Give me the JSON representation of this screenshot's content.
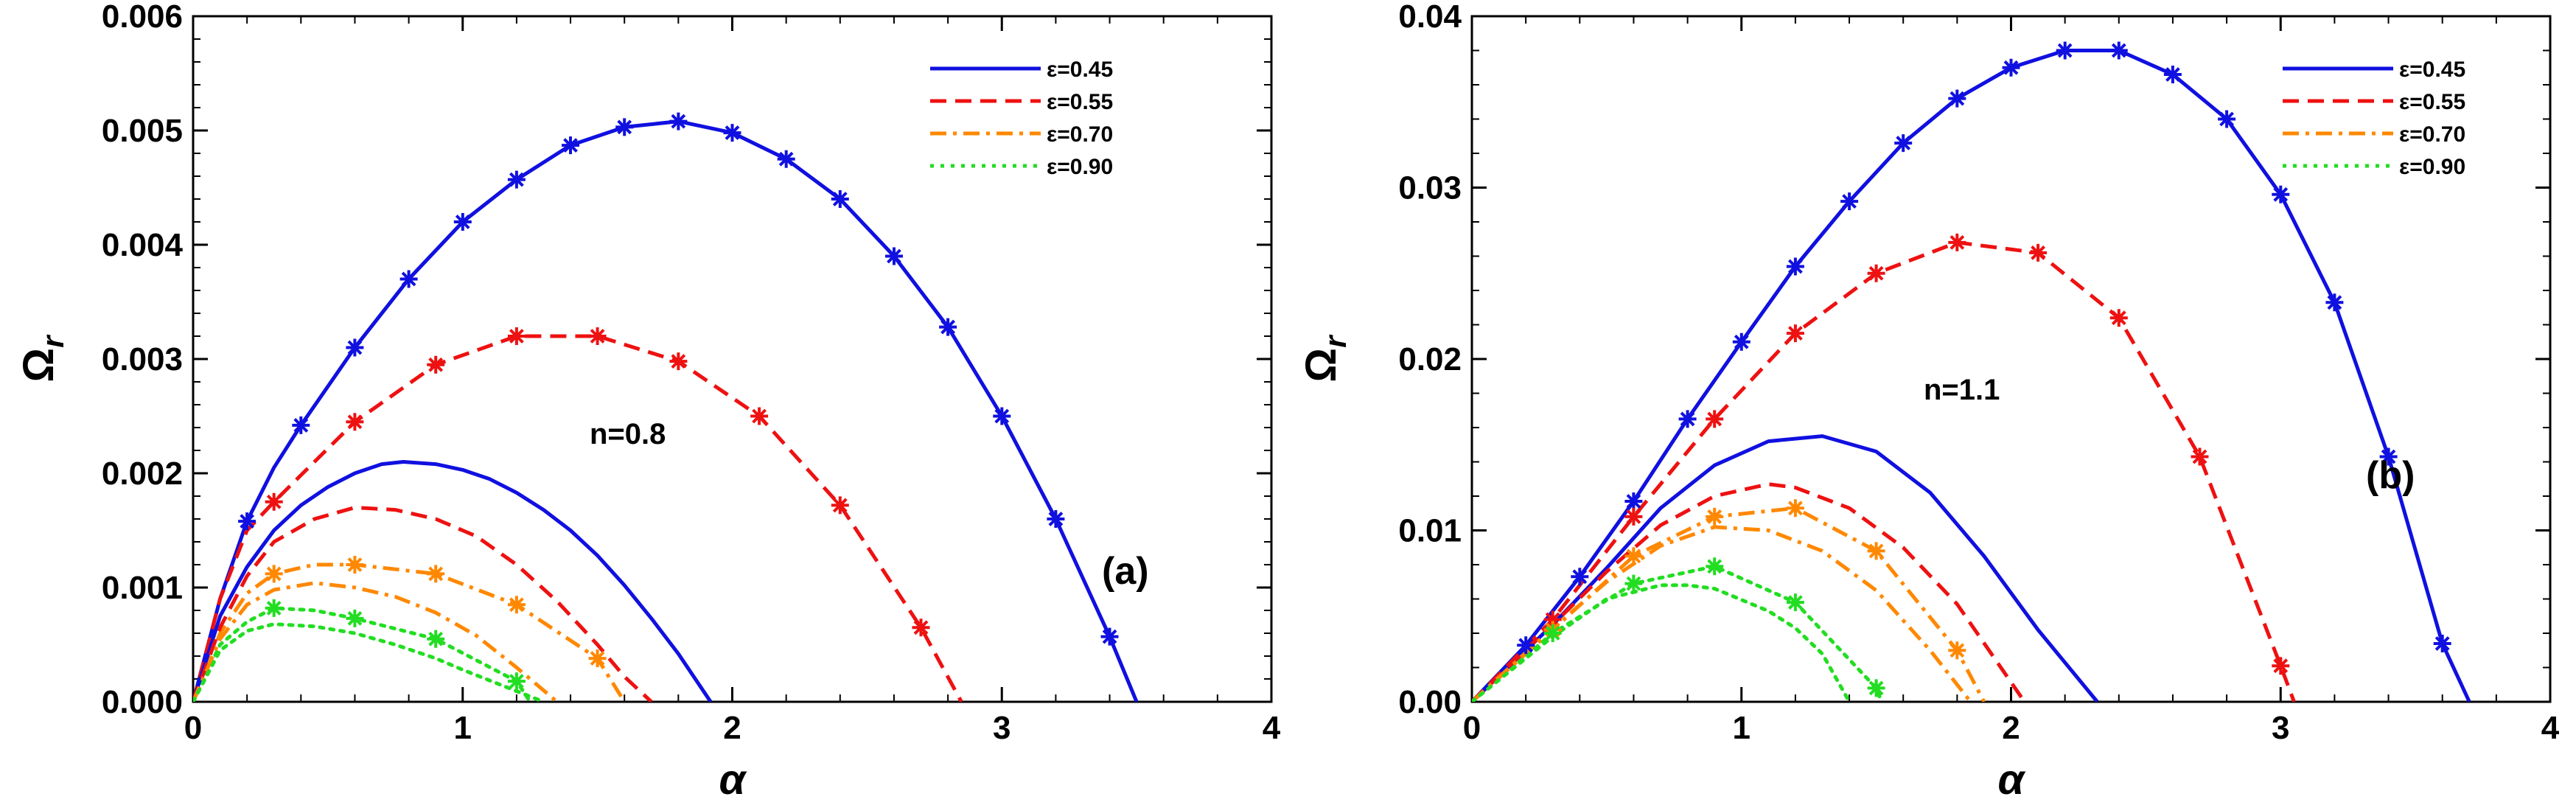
{
  "chart_data": [
    {
      "type": "line",
      "panel_label": "(a)",
      "annotation": "n=0.8",
      "xlabel": "α",
      "ylabel_main": "Ω",
      "ylabel_sub": "r",
      "xlim": [
        0,
        4
      ],
      "ylim": [
        0,
        0.006
      ],
      "xticks": [
        0,
        1,
        2,
        3,
        4
      ],
      "xtick_labels": [
        "0",
        "1",
        "2",
        "3",
        "4"
      ],
      "yticks": [
        0,
        0.001,
        0.002,
        0.003,
        0.004,
        0.005,
        0.006
      ],
      "ytick_labels": [
        "0.000",
        "0.001",
        "0.002",
        "0.003",
        "0.004",
        "0.005",
        "0.006"
      ],
      "legend_position": "top-right",
      "series": [
        {
          "name": "ε=0.45",
          "color": "#1010e0",
          "dash": "solid",
          "legend": true,
          "x": [
            0,
            0.1,
            0.2,
            0.3,
            0.4,
            0.6,
            0.8,
            1.0,
            1.2,
            1.4,
            1.6,
            1.8,
            2.0,
            2.2,
            2.4,
            2.6,
            2.8,
            3.0,
            3.2,
            3.4,
            3.5
          ],
          "y": [
            0,
            0.0009,
            0.00158,
            0.00205,
            0.00242,
            0.0031,
            0.0037,
            0.0042,
            0.00457,
            0.00487,
            0.00503,
            0.00508,
            0.00498,
            0.00475,
            0.0044,
            0.0039,
            0.00328,
            0.0025,
            0.0016,
            0.00057,
            0
          ]
        },
        {
          "name": "ε=0.55",
          "color": "#ee1111",
          "dash": "dashed",
          "legend": true,
          "x": [
            0,
            0.1,
            0.2,
            0.3,
            0.45,
            0.6,
            0.9,
            1.2,
            1.5,
            1.8,
            2.1,
            2.4,
            2.7,
            2.85
          ],
          "y": [
            0,
            0.0009,
            0.0015,
            0.00175,
            0.0021,
            0.00245,
            0.00295,
            0.0032,
            0.0032,
            0.00298,
            0.0025,
            0.00172,
            0.00065,
            0
          ]
        },
        {
          "name": "ε=0.70",
          "color": "#ff8800",
          "dash": "dashdot",
          "legend": true,
          "x": [
            0,
            0.1,
            0.2,
            0.3,
            0.45,
            0.6,
            0.9,
            1.2,
            1.5,
            1.6
          ],
          "y": [
            0,
            0.0006,
            0.00095,
            0.00112,
            0.0012,
            0.0012,
            0.00112,
            0.00085,
            0.00038,
            0
          ]
        },
        {
          "name": "ε=0.90",
          "color": "#22dd22",
          "dash": "dotted",
          "legend": true,
          "x": [
            0,
            0.1,
            0.2,
            0.3,
            0.45,
            0.6,
            0.9,
            1.2,
            1.25
          ],
          "y": [
            0,
            0.0005,
            0.0007,
            0.00082,
            0.0008,
            0.00073,
            0.00055,
            0.00018,
            0
          ]
        },
        {
          "name": "ε=0.45 (lower)",
          "color": "#1010e0",
          "dash": "solid",
          "legend": false,
          "x": [
            0,
            0.1,
            0.2,
            0.3,
            0.4,
            0.5,
            0.6,
            0.7,
            0.78,
            0.9,
            1.0,
            1.1,
            1.2,
            1.3,
            1.4,
            1.5,
            1.6,
            1.7,
            1.8,
            1.92
          ],
          "y": [
            0,
            0.00075,
            0.00118,
            0.0015,
            0.00172,
            0.00188,
            0.002,
            0.00208,
            0.0021,
            0.00208,
            0.00203,
            0.00195,
            0.00183,
            0.00168,
            0.0015,
            0.00128,
            0.00102,
            0.00073,
            0.00042,
            0
          ]
        },
        {
          "name": "ε=0.55 (lower)",
          "color": "#ee1111",
          "dash": "dashed",
          "legend": false,
          "x": [
            0,
            0.1,
            0.2,
            0.3,
            0.45,
            0.6,
            0.75,
            0.9,
            1.05,
            1.2,
            1.35,
            1.5,
            1.6,
            1.7
          ],
          "y": [
            0,
            0.00065,
            0.0011,
            0.0014,
            0.0016,
            0.0017,
            0.00168,
            0.0016,
            0.00145,
            0.0012,
            0.00088,
            0.0005,
            0.00022,
            0
          ]
        },
        {
          "name": "ε=0.70 (lower)",
          "color": "#ff8800",
          "dash": "dashdot",
          "legend": false,
          "x": [
            0,
            0.1,
            0.2,
            0.3,
            0.45,
            0.6,
            0.75,
            0.9,
            1.05,
            1.2,
            1.35
          ],
          "y": [
            0,
            0.00055,
            0.00085,
            0.00098,
            0.00104,
            0.001,
            0.00092,
            0.00078,
            0.00058,
            0.0003,
            0
          ]
        },
        {
          "name": "ε=0.90 (lower)",
          "color": "#22dd22",
          "dash": "dotted",
          "legend": false,
          "x": [
            0,
            0.1,
            0.2,
            0.3,
            0.45,
            0.6,
            0.75,
            0.9,
            1.0,
            1.15,
            1.3
          ],
          "y": [
            0,
            0.00045,
            0.00062,
            0.00068,
            0.00066,
            0.0006,
            0.0005,
            0.00038,
            0.00028,
            0.00014,
            0
          ]
        }
      ],
      "markers": [
        {
          "color": "#1010e0",
          "x": [
            0.2,
            0.4,
            0.6,
            0.8,
            1.0,
            1.2,
            1.4,
            1.6,
            1.8,
            2.0,
            2.2,
            2.4,
            2.6,
            2.8,
            3.0,
            3.2,
            3.4
          ],
          "y": [
            0.00158,
            0.00242,
            0.0031,
            0.0037,
            0.0042,
            0.00457,
            0.00487,
            0.00503,
            0.00508,
            0.00498,
            0.00475,
            0.0044,
            0.0039,
            0.00328,
            0.0025,
            0.0016,
            0.00057
          ]
        },
        {
          "color": "#ee1111",
          "x": [
            0.3,
            0.6,
            0.9,
            1.2,
            1.5,
            1.8,
            2.1,
            2.4,
            2.7
          ],
          "y": [
            0.00175,
            0.00245,
            0.00295,
            0.0032,
            0.0032,
            0.00298,
            0.0025,
            0.00172,
            0.00065
          ]
        },
        {
          "color": "#ff8800",
          "x": [
            0.3,
            0.6,
            0.9,
            1.2,
            1.5
          ],
          "y": [
            0.00112,
            0.0012,
            0.00112,
            0.00085,
            0.00038
          ]
        },
        {
          "color": "#22dd22",
          "x": [
            0.3,
            0.6,
            0.9,
            1.2
          ],
          "y": [
            0.00082,
            0.00073,
            0.00055,
            0.00018
          ]
        }
      ]
    },
    {
      "type": "line",
      "panel_label": "(b)",
      "annotation": "n=1.1",
      "xlabel": "α",
      "ylabel_main": "Ω",
      "ylabel_sub": "r",
      "xlim": [
        0,
        4
      ],
      "ylim": [
        0,
        0.04
      ],
      "xticks": [
        0,
        1,
        2,
        3,
        4
      ],
      "xtick_labels": [
        "0",
        "1",
        "2",
        "3",
        "4"
      ],
      "yticks": [
        0,
        0.01,
        0.02,
        0.03,
        0.04
      ],
      "ytick_labels": [
        "0.00",
        "0.01",
        "0.02",
        "0.03",
        "0.04"
      ],
      "legend_position": "top-right",
      "series": [
        {
          "name": "ε=0.45",
          "color": "#1010e0",
          "dash": "solid",
          "legend": true,
          "x": [
            0,
            0.2,
            0.4,
            0.6,
            0.8,
            1.0,
            1.2,
            1.4,
            1.6,
            1.8,
            2.0,
            2.2,
            2.4,
            2.6,
            2.8,
            3.0,
            3.2,
            3.4,
            3.6,
            3.7
          ],
          "y": [
            0,
            0.0033,
            0.0073,
            0.0117,
            0.0165,
            0.021,
            0.0254,
            0.0292,
            0.0326,
            0.0352,
            0.037,
            0.038,
            0.038,
            0.0366,
            0.034,
            0.0296,
            0.0233,
            0.0143,
            0.0034,
            0
          ]
        },
        {
          "name": "ε=0.55",
          "color": "#ee1111",
          "dash": "dashed",
          "legend": true,
          "x": [
            0,
            0.3,
            0.6,
            0.9,
            1.2,
            1.5,
            1.8,
            2.1,
            2.4,
            2.7,
            3.0,
            3.05
          ],
          "y": [
            0,
            0.0048,
            0.0108,
            0.0165,
            0.0215,
            0.025,
            0.0268,
            0.0262,
            0.0224,
            0.0143,
            0.0021,
            0
          ]
        },
        {
          "name": "ε=0.70",
          "color": "#ff8800",
          "dash": "dashdot",
          "legend": true,
          "x": [
            0,
            0.3,
            0.6,
            0.9,
            1.2,
            1.5,
            1.8,
            1.9
          ],
          "y": [
            0,
            0.0042,
            0.0085,
            0.0108,
            0.0113,
            0.0088,
            0.003,
            0
          ]
        },
        {
          "name": "ε=0.90",
          "color": "#22dd22",
          "dash": "dotted",
          "legend": true,
          "x": [
            0,
            0.3,
            0.6,
            0.9,
            1.2,
            1.5,
            1.52
          ],
          "y": [
            0,
            0.004,
            0.0069,
            0.0079,
            0.0058,
            0.0008,
            0
          ]
        },
        {
          "name": "ε=0.45 (lower)",
          "color": "#1010e0",
          "dash": "solid",
          "legend": false,
          "x": [
            0,
            0.3,
            0.5,
            0.7,
            0.9,
            1.1,
            1.3,
            1.5,
            1.7,
            1.9,
            2.1,
            2.32
          ],
          "y": [
            0,
            0.0045,
            0.0078,
            0.0113,
            0.0138,
            0.0152,
            0.0155,
            0.0146,
            0.0122,
            0.0085,
            0.0042,
            0
          ]
        },
        {
          "name": "ε=0.55 (lower)",
          "color": "#ee1111",
          "dash": "dashed",
          "legend": false,
          "x": [
            0,
            0.3,
            0.5,
            0.7,
            0.9,
            1.1,
            1.2,
            1.4,
            1.6,
            1.8,
            2.05
          ],
          "y": [
            0,
            0.0045,
            0.0076,
            0.0103,
            0.012,
            0.0127,
            0.0125,
            0.0113,
            0.009,
            0.0057,
            0
          ]
        },
        {
          "name": "ε=0.70 (lower)",
          "color": "#ff8800",
          "dash": "dashdot",
          "legend": false,
          "x": [
            0,
            0.3,
            0.5,
            0.7,
            0.9,
            1.1,
            1.3,
            1.5,
            1.7,
            1.85
          ],
          "y": [
            0,
            0.0043,
            0.007,
            0.0091,
            0.0102,
            0.01,
            0.0088,
            0.0065,
            0.003,
            0
          ]
        },
        {
          "name": "ε=0.90 (lower)",
          "color": "#22dd22",
          "dash": "dotted",
          "legend": false,
          "x": [
            0,
            0.3,
            0.5,
            0.7,
            0.8,
            0.9,
            1.1,
            1.2,
            1.3,
            1.4
          ],
          "y": [
            0,
            0.0038,
            0.006,
            0.0068,
            0.0068,
            0.0066,
            0.0053,
            0.0043,
            0.0028,
            0
          ]
        }
      ],
      "markers": [
        {
          "color": "#1010e0",
          "x": [
            0.2,
            0.4,
            0.6,
            0.8,
            1.0,
            1.2,
            1.4,
            1.6,
            1.8,
            2.0,
            2.2,
            2.4,
            2.6,
            2.8,
            3.0,
            3.2,
            3.4,
            3.6
          ],
          "y": [
            0.0033,
            0.0073,
            0.0117,
            0.0165,
            0.021,
            0.0254,
            0.0292,
            0.0326,
            0.0352,
            0.037,
            0.038,
            0.038,
            0.0366,
            0.034,
            0.0296,
            0.0233,
            0.0143,
            0.0034
          ]
        },
        {
          "color": "#ee1111",
          "x": [
            0.3,
            0.6,
            0.9,
            1.2,
            1.5,
            1.8,
            2.1,
            2.4,
            2.7,
            3.0
          ],
          "y": [
            0.0048,
            0.0108,
            0.0165,
            0.0215,
            0.025,
            0.0268,
            0.0262,
            0.0224,
            0.0143,
            0.0021
          ]
        },
        {
          "color": "#ff8800",
          "x": [
            0.3,
            0.6,
            0.9,
            1.2,
            1.5,
            1.8
          ],
          "y": [
            0.0042,
            0.0085,
            0.0108,
            0.0113,
            0.0088,
            0.003
          ]
        },
        {
          "color": "#22dd22",
          "x": [
            0.3,
            0.6,
            0.9,
            1.2,
            1.5
          ],
          "y": [
            0.004,
            0.0069,
            0.0079,
            0.0058,
            0.0008
          ]
        }
      ]
    }
  ]
}
